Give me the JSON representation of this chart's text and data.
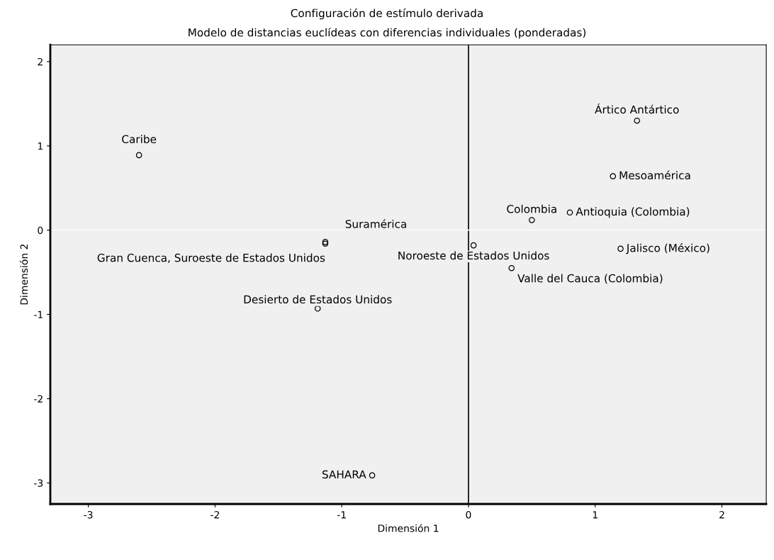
{
  "chart_data": {
    "type": "scatter",
    "title": "Configuración de estímulo derivada",
    "subtitle": "Modelo de distancias euclídeas con diferencias individuales (ponderadas)",
    "xlabel": "Dimensión 1",
    "ylabel": "Dimensión 2",
    "x": [
      -2.6,
      -1.13,
      -1.13,
      -1.19,
      -0.76,
      1.33,
      1.14,
      0.5,
      0.8,
      1.2,
      0.04,
      0.34
    ],
    "values": [
      0.89,
      -0.14,
      -0.16,
      -0.93,
      -2.91,
      1.3,
      0.64,
      0.12,
      0.21,
      -0.22,
      -0.18,
      -0.45
    ],
    "color": "#000000",
    "marker": "circle",
    "xlim": [
      -3.3,
      2.35
    ],
    "ylim": [
      -3.25,
      2.2
    ],
    "xticks": [
      -3,
      -2,
      -1,
      0,
      1,
      2
    ],
    "yticks": [
      -3,
      -2,
      -1,
      0,
      1,
      2
    ],
    "grid": false,
    "ref_lines": [
      {
        "axis": "x",
        "value": 0,
        "color": "#000000"
      },
      {
        "axis": "y",
        "value": 0,
        "color": "#fafafa"
      }
    ],
    "annotations": [
      {
        "text": "Caribe",
        "x": -2.6,
        "y": 0.89
      },
      {
        "text": "Suramérica",
        "x": -1.13,
        "y": -0.14
      },
      {
        "text": "Gran Cuenca, Suroeste de Estados Unidos",
        "x": -1.13,
        "y": -0.16
      },
      {
        "text": "Desierto de Estados Unidos",
        "x": -1.19,
        "y": -0.93
      },
      {
        "text": "SAHARA",
        "x": -0.76,
        "y": -2.91
      },
      {
        "text": "Ártico Antártico",
        "x": 1.33,
        "y": 1.3
      },
      {
        "text": "Mesoamérica",
        "x": 1.14,
        "y": 0.64
      },
      {
        "text": "Colombia",
        "x": 0.5,
        "y": 0.12
      },
      {
        "text": "Antioquia (Colombia)",
        "x": 0.8,
        "y": 0.21
      },
      {
        "text": "Jalisco (México)",
        "x": 1.2,
        "y": -0.22
      },
      {
        "text": "Noroeste de Estados Unidos",
        "x": 0.04,
        "y": -0.18
      },
      {
        "text": "Valle del Cauca (Colombia)",
        "x": 0.34,
        "y": -0.45
      }
    ]
  }
}
